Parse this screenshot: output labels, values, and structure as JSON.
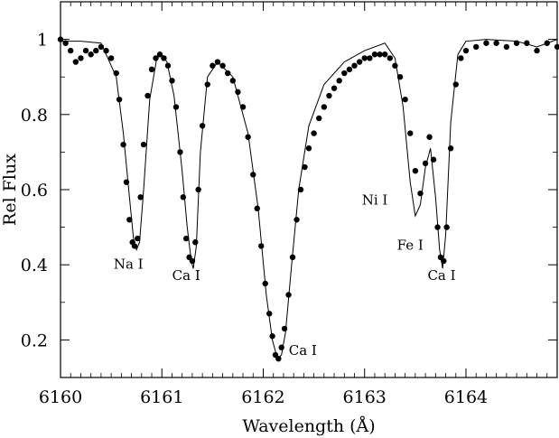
{
  "chart_data": {
    "type": "line",
    "xlabel": "Wavelength (Å)",
    "ylabel": "Rel Flux",
    "xlim": [
      6160,
      6164.9
    ],
    "ylim": [
      0.1,
      1.1
    ],
    "xticks": [
      6160,
      6161,
      6162,
      6163,
      6164
    ],
    "yticks": [
      0.2,
      0.4,
      0.6,
      0.8,
      1
    ],
    "ytick_labels": [
      "0.2",
      "0.4",
      "0.6",
      "0.8",
      "1"
    ],
    "grid": false,
    "series": [
      {
        "style": "line",
        "x": [
          6160.0,
          6160.2,
          6160.4,
          6160.55,
          6160.62,
          6160.68,
          6160.72,
          6160.75,
          6160.78,
          6160.82,
          6160.88,
          6160.95,
          6161.0,
          6161.05,
          6161.12,
          6161.2,
          6161.25,
          6161.29,
          6161.31,
          6161.34,
          6161.38,
          6161.45,
          6161.55,
          6161.7,
          6161.85,
          6161.95,
          6162.03,
          6162.09,
          6162.14,
          6162.18,
          6162.22,
          6162.28,
          6162.35,
          6162.45,
          6162.6,
          6162.8,
          6163.0,
          6163.2,
          6163.3,
          6163.38,
          6163.45,
          6163.5,
          6163.55,
          6163.6,
          6163.65,
          6163.7,
          6163.74,
          6163.77,
          6163.8,
          6163.85,
          6163.92,
          6164.0,
          6164.2,
          6164.5,
          6164.7,
          6164.9
        ],
        "y": [
          0.995,
          0.995,
          0.99,
          0.9,
          0.75,
          0.58,
          0.47,
          0.44,
          0.46,
          0.6,
          0.84,
          0.95,
          0.96,
          0.94,
          0.85,
          0.65,
          0.5,
          0.41,
          0.39,
          0.45,
          0.7,
          0.9,
          0.94,
          0.9,
          0.75,
          0.55,
          0.32,
          0.2,
          0.15,
          0.16,
          0.22,
          0.4,
          0.6,
          0.77,
          0.88,
          0.94,
          0.97,
          0.99,
          0.95,
          0.82,
          0.62,
          0.53,
          0.56,
          0.66,
          0.71,
          0.58,
          0.44,
          0.39,
          0.48,
          0.78,
          0.96,
          0.995,
          1.0,
          0.995,
          0.98,
          1.0
        ]
      },
      {
        "style": "points",
        "x": [
          6160.0,
          6160.05,
          6160.1,
          6160.15,
          6160.2,
          6160.25,
          6160.3,
          6160.35,
          6160.4,
          6160.45,
          6160.5,
          6160.55,
          6160.58,
          6160.62,
          6160.65,
          6160.68,
          6160.71,
          6160.73,
          6160.76,
          6160.79,
          6160.82,
          6160.86,
          6160.9,
          6160.94,
          6160.98,
          6161.02,
          6161.06,
          6161.1,
          6161.14,
          6161.18,
          6161.21,
          6161.24,
          6161.27,
          6161.3,
          6161.33,
          6161.36,
          6161.4,
          6161.45,
          6161.5,
          6161.55,
          6161.6,
          6161.65,
          6161.7,
          6161.75,
          6161.8,
          6161.85,
          6161.9,
          6161.94,
          6161.98,
          6162.02,
          6162.06,
          6162.09,
          6162.12,
          6162.15,
          6162.18,
          6162.21,
          6162.25,
          6162.29,
          6162.33,
          6162.37,
          6162.41,
          6162.45,
          6162.5,
          6162.55,
          6162.6,
          6162.65,
          6162.7,
          6162.75,
          6162.8,
          6162.85,
          6162.9,
          6162.95,
          6163.0,
          6163.05,
          6163.1,
          6163.15,
          6163.2,
          6163.25,
          6163.3,
          6163.35,
          6163.4,
          6163.45,
          6163.5,
          6163.55,
          6163.6,
          6163.64,
          6163.68,
          6163.72,
          6163.75,
          6163.78,
          6163.81,
          6163.85,
          6163.9,
          6163.95,
          6164.0,
          6164.1,
          6164.2,
          6164.3,
          6164.4,
          6164.5,
          6164.6,
          6164.7,
          6164.8,
          6164.9
        ],
        "y": [
          1.0,
          0.99,
          0.97,
          0.94,
          0.95,
          0.97,
          0.96,
          0.97,
          0.98,
          0.97,
          0.95,
          0.91,
          0.84,
          0.72,
          0.62,
          0.52,
          0.46,
          0.45,
          0.47,
          0.58,
          0.72,
          0.85,
          0.92,
          0.95,
          0.96,
          0.95,
          0.93,
          0.89,
          0.82,
          0.7,
          0.58,
          0.47,
          0.42,
          0.41,
          0.46,
          0.6,
          0.77,
          0.88,
          0.93,
          0.94,
          0.93,
          0.91,
          0.89,
          0.86,
          0.82,
          0.74,
          0.64,
          0.55,
          0.45,
          0.35,
          0.27,
          0.21,
          0.16,
          0.15,
          0.18,
          0.23,
          0.32,
          0.42,
          0.52,
          0.6,
          0.66,
          0.71,
          0.75,
          0.79,
          0.82,
          0.85,
          0.87,
          0.89,
          0.91,
          0.92,
          0.93,
          0.94,
          0.95,
          0.95,
          0.96,
          0.96,
          0.96,
          0.95,
          0.93,
          0.9,
          0.84,
          0.75,
          0.65,
          0.59,
          0.67,
          0.74,
          0.68,
          0.5,
          0.42,
          0.41,
          0.5,
          0.71,
          0.88,
          0.95,
          0.97,
          0.98,
          0.99,
          0.99,
          0.98,
          0.99,
          0.99,
          0.97,
          0.99,
          0.98
        ]
      }
    ],
    "annotations": [
      {
        "text": "Na I",
        "x": 6160.67,
        "y": 0.39
      },
      {
        "text": "Ca I",
        "x": 6161.24,
        "y": 0.36
      },
      {
        "text": "Ca I",
        "x": 6162.39,
        "y": 0.16
      },
      {
        "text": "Ni I",
        "x": 6163.1,
        "y": 0.56
      },
      {
        "text": "Fe I",
        "x": 6163.45,
        "y": 0.44
      },
      {
        "text": "Ca I",
        "x": 6163.76,
        "y": 0.36
      }
    ]
  }
}
